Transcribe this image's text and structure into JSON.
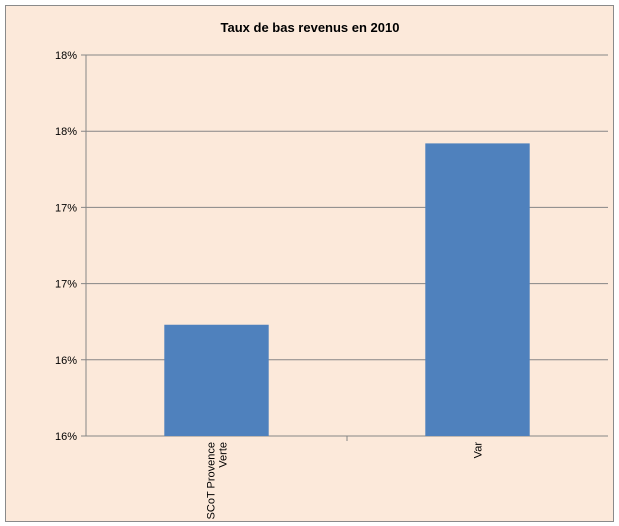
{
  "chart_data": {
    "type": "bar",
    "title": "Taux de bas revenus en 2010",
    "categories": [
      "SCoT Provence Verte",
      "Var"
    ],
    "category_lines": [
      [
        "SCoT Provence",
        "Verte"
      ],
      [
        "Var"
      ]
    ],
    "values": [
      0.1673,
      0.1792
    ],
    "ylim": [
      0.16,
      0.185
    ],
    "y_ticks": [
      0.16,
      0.165,
      0.17,
      0.175,
      0.18,
      0.185
    ],
    "y_tick_labels": [
      "16%",
      "16%",
      "17%",
      "17%",
      "18%",
      "18%"
    ],
    "xlabel": "",
    "ylabel": "",
    "grid": true,
    "legend": "none",
    "bar_color": "#4f81bd",
    "background_color": "#fce9da",
    "gridline_color": "#868686"
  }
}
